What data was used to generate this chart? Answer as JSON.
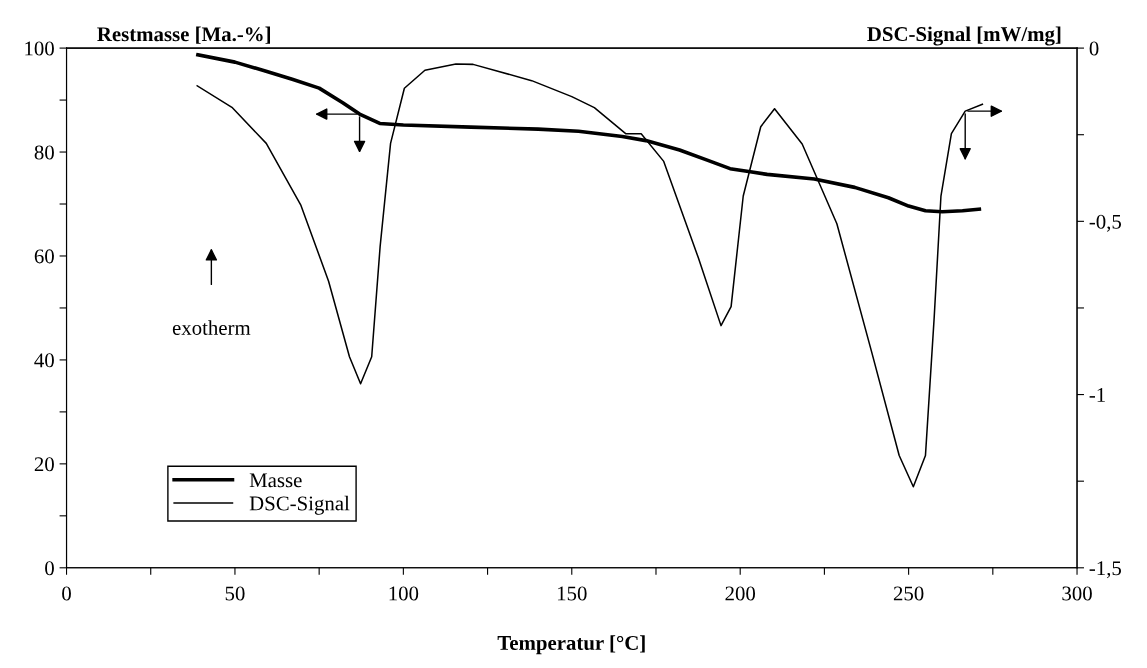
{
  "chart_data": {
    "type": "line",
    "xlabel": "Temperatur [°C]",
    "ylabel": "Restmasse [Ma.-%]",
    "y2label": "DSC-Signal [mW/mg]",
    "xlim": [
      0,
      300
    ],
    "xticks": [
      0,
      {
        "value": 25,
        "label": null
      },
      50,
      {
        "value": 75,
        "label": null
      },
      100,
      {
        "value": 125,
        "label": null
      },
      150,
      {
        "value": 175,
        "label": null
      },
      200,
      {
        "value": 225,
        "label": null
      },
      250,
      {
        "value": 275,
        "label": null
      },
      300
    ],
    "ylim": [
      0,
      100
    ],
    "yticks": [
      0,
      {
        "value": 10,
        "label": null
      },
      20,
      {
        "value": 30,
        "label": null
      },
      40,
      {
        "value": 50,
        "label": null
      },
      60,
      {
        "value": 70,
        "label": null
      },
      80,
      {
        "value": 90,
        "label": null
      },
      100
    ],
    "y2lim": [
      -1.5,
      0
    ],
    "y2ticks": [
      {
        "value": -1.5,
        "label": "-1,5"
      },
      {
        "value": -1.25,
        "label": null
      },
      {
        "value": -1,
        "label": "-1"
      },
      {
        "value": -0.75,
        "label": null
      },
      {
        "value": -0.5,
        "label": "-0,5"
      },
      {
        "value": -0.25,
        "label": null
      },
      0
    ],
    "grid": false,
    "legend": "bottom left",
    "marker": "none",
    "line_style": "solid",
    "annotations": [
      "exotherm"
    ],
    "series": [
      {
        "name": "Masse",
        "color": "#000000",
        "x": [
          39,
          50,
          59,
          67,
          75,
          82,
          87,
          93,
          100,
          120,
          140,
          152,
          165,
          172,
          182,
          190,
          197,
          203,
          208,
          222,
          234,
          244,
          250,
          255,
          260,
          266,
          271
        ],
        "values": [
          98.7,
          97.3,
          95.6,
          94,
          92.3,
          89.5,
          87.3,
          85.5,
          85.2,
          84.8,
          84.4,
          84,
          83,
          82.2,
          80.4,
          78.5,
          76.8,
          76.2,
          75.7,
          74.8,
          73.2,
          71.2,
          69.6,
          68.7,
          68.5,
          68.7,
          69.0
        ]
      },
      {
        "name": "DSC-Signal",
        "color": "#000000",
        "axis": "y2",
        "x": [
          38.8,
          49.1,
          59.3,
          69.6,
          77.8,
          84,
          87.3,
          90.6,
          93.1,
          96.2,
          100.3,
          106.4,
          115.6,
          120.7,
          138.1,
          150,
          156.7,
          166,
          170.6,
          177.3,
          187.6,
          194.3,
          197.3,
          200.9,
          206.1,
          210.2,
          218.4,
          228.7,
          239,
          247.2,
          251.4,
          255,
          257.6,
          259.6,
          262.7,
          266.8,
          271.9
        ],
        "values": [
          -0.109,
          -0.171,
          -0.275,
          -0.454,
          -0.673,
          -0.891,
          -0.969,
          -0.891,
          -0.573,
          -0.275,
          -0.116,
          -0.064,
          -0.046,
          -0.047,
          -0.094,
          -0.14,
          -0.172,
          -0.247,
          -0.247,
          -0.327,
          -0.606,
          -0.801,
          -0.746,
          -0.427,
          -0.227,
          -0.175,
          -0.277,
          -0.507,
          -0.876,
          -1.176,
          -1.266,
          -1.176,
          -0.776,
          -0.427,
          -0.247,
          -0.182,
          -0.162
        ]
      }
    ]
  }
}
